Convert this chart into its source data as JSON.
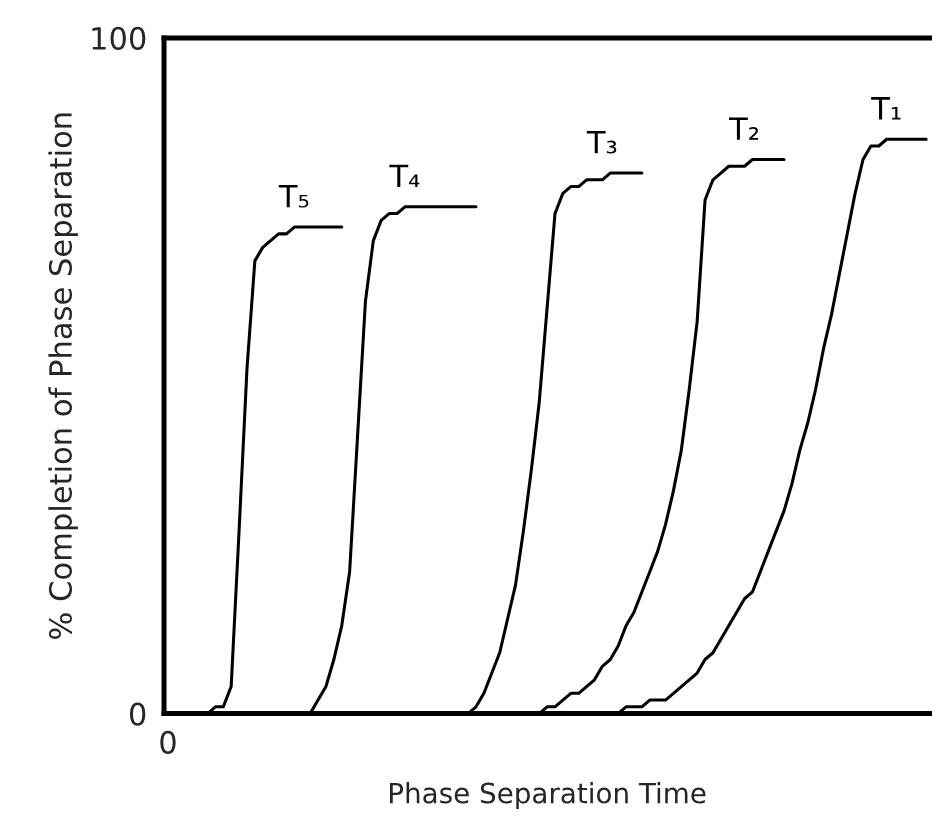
{
  "chart_data": {
    "type": "line",
    "xlabel": "Phase Separation Time",
    "ylabel": "% Completion of Phase Separation",
    "categories": [
      "0",
      null,
      null,
      null,
      null,
      null,
      null,
      null,
      null,
      null,
      null,
      null,
      null,
      null,
      null,
      null,
      null,
      null,
      null,
      null,
      null,
      null,
      null,
      null,
      null,
      null,
      null,
      null,
      null,
      null,
      null,
      null,
      null,
      null,
      null,
      null,
      null,
      null,
      null,
      null,
      null,
      null,
      null,
      null,
      null,
      null,
      null,
      null,
      null,
      null,
      null,
      null,
      null,
      null,
      null,
      null,
      null,
      null,
      null,
      null,
      null,
      null,
      null,
      null,
      null,
      null,
      null,
      null,
      null,
      null,
      null,
      null,
      null,
      null,
      null,
      null,
      null,
      null,
      null,
      null,
      null,
      null,
      null,
      null,
      null,
      null,
      null,
      null,
      null,
      null,
      null,
      null,
      null,
      null,
      null,
      null,
      null
    ],
    "ylim": [
      0,
      100
    ],
    "yticks": [
      0,
      100
    ],
    "legend": false,
    "marker": "none",
    "line_style": "solid",
    "series": [
      {
        "name": "T₅",
        "color": "#000000",
        "values": [
          null,
          null,
          null,
          null,
          null,
          0,
          1,
          1,
          4,
          27,
          51,
          67,
          69,
          70,
          71,
          71,
          72,
          72,
          72,
          72,
          72,
          72,
          72,
          null,
          null,
          null,
          null,
          null,
          null,
          null,
          null,
          null,
          null,
          null,
          null,
          null,
          null,
          null,
          null,
          null,
          null,
          null,
          null,
          null,
          null,
          null,
          null,
          null,
          null,
          null,
          null,
          null,
          null,
          null,
          null,
          null,
          null,
          null,
          null,
          null,
          null,
          null,
          null,
          null,
          null,
          null,
          null,
          null,
          null,
          null,
          null,
          null,
          null,
          null,
          null,
          null,
          null,
          null,
          null,
          null,
          null,
          null,
          null,
          null,
          null,
          null,
          null,
          null,
          null,
          null,
          null,
          null,
          null,
          null,
          null,
          null,
          null
        ]
      },
      {
        "name": "T₄",
        "color": "#000000",
        "values": [
          null,
          null,
          null,
          null,
          null,
          null,
          null,
          null,
          null,
          null,
          null,
          null,
          null,
          null,
          null,
          null,
          null,
          0,
          0,
          2,
          4,
          8,
          13,
          21,
          41,
          61,
          70,
          73,
          74,
          74,
          75,
          75,
          75,
          75,
          75,
          75,
          75,
          75,
          75,
          75,
          null,
          null,
          null,
          null,
          null,
          null,
          null,
          null,
          null,
          null,
          null,
          null,
          null,
          null,
          null,
          null,
          null,
          null,
          null,
          null,
          null,
          null,
          null,
          null,
          null,
          null,
          null,
          null,
          null,
          null,
          null,
          null,
          null,
          null,
          null,
          null,
          null,
          null,
          null,
          null,
          null,
          null,
          null,
          null,
          null,
          null,
          null,
          null,
          null,
          null,
          null,
          null,
          null,
          null,
          null,
          null,
          null
        ]
      },
      {
        "name": "T₃",
        "color": "#000000",
        "values": [
          null,
          null,
          null,
          null,
          null,
          null,
          null,
          null,
          null,
          null,
          null,
          null,
          null,
          null,
          null,
          null,
          null,
          null,
          null,
          null,
          null,
          null,
          null,
          null,
          null,
          null,
          null,
          null,
          null,
          null,
          null,
          null,
          null,
          null,
          null,
          null,
          null,
          0,
          0,
          1,
          3,
          6,
          9,
          14,
          19,
          27,
          36,
          46,
          60,
          74,
          77,
          78,
          78,
          79,
          79,
          79,
          80,
          80,
          80,
          80,
          80,
          null,
          null,
          null,
          null,
          null,
          null,
          null,
          null,
          null,
          null,
          null,
          null,
          null,
          null,
          null,
          null,
          null,
          null,
          null,
          null,
          null,
          null,
          null,
          null,
          null,
          null,
          null,
          null,
          null,
          null,
          null,
          null,
          null,
          null,
          null,
          null
        ]
      },
      {
        "name": "T₂",
        "color": "#000000",
        "values": [
          null,
          null,
          null,
          null,
          null,
          null,
          null,
          null,
          null,
          null,
          null,
          null,
          null,
          null,
          null,
          null,
          null,
          null,
          null,
          null,
          null,
          null,
          null,
          null,
          null,
          null,
          null,
          null,
          null,
          null,
          null,
          null,
          null,
          null,
          null,
          null,
          null,
          null,
          null,
          null,
          null,
          null,
          null,
          null,
          null,
          null,
          0,
          0,
          1,
          1,
          2,
          3,
          3,
          4,
          5,
          7,
          8,
          10,
          13,
          15,
          18,
          21,
          24,
          28,
          33,
          39,
          48,
          58,
          76,
          79,
          80,
          81,
          81,
          81,
          82,
          82,
          82,
          82,
          82,
          null,
          null,
          null,
          null,
          null,
          null,
          null,
          null,
          null,
          null,
          null,
          null,
          null,
          null,
          null,
          null,
          null,
          null
        ]
      },
      {
        "name": "T₁",
        "color": "#000000",
        "values": [
          null,
          null,
          null,
          null,
          null,
          null,
          null,
          null,
          null,
          null,
          null,
          null,
          null,
          null,
          null,
          null,
          null,
          null,
          null,
          null,
          null,
          null,
          null,
          null,
          null,
          null,
          null,
          null,
          null,
          null,
          null,
          null,
          null,
          null,
          null,
          null,
          null,
          null,
          null,
          null,
          null,
          null,
          null,
          null,
          null,
          null,
          null,
          null,
          null,
          null,
          null,
          null,
          null,
          null,
          0,
          0,
          0,
          0,
          1,
          1,
          1,
          2,
          2,
          2,
          3,
          4,
          5,
          6,
          8,
          9,
          11,
          13,
          15,
          17,
          18,
          21,
          24,
          27,
          30,
          34,
          39,
          43,
          48,
          54,
          59,
          65,
          71,
          77,
          82,
          84,
          84,
          85,
          85,
          85,
          85,
          85,
          85
        ]
      }
    ]
  }
}
